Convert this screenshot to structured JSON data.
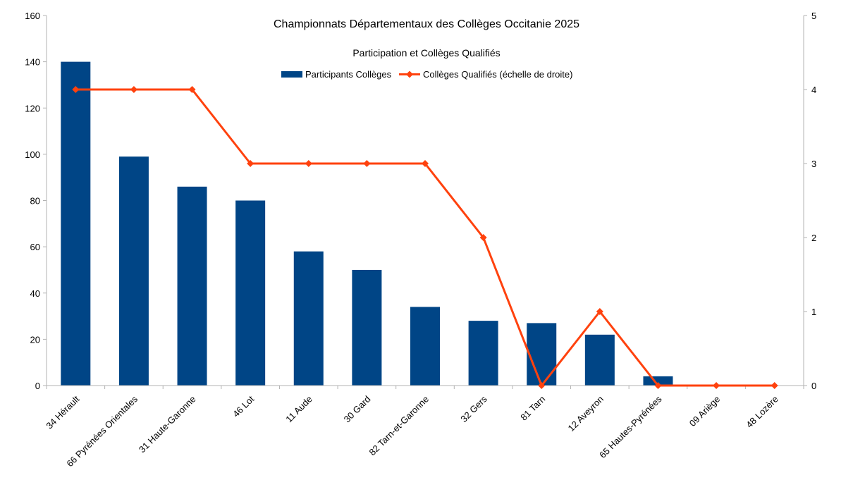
{
  "chart_data": {
    "type": "bar",
    "title": "Championnats Départementaux des Collèges Occitanie 2025",
    "subtitle": "Participation et Collèges Qualifiés",
    "categories": [
      "34 Hérault",
      "66 Pyrénées Orientales",
      "31 Haute-Garonne",
      "46 Lot",
      "11 Aude",
      "30 Gard",
      "82 Tarn-et-Garonne",
      "32 Gers",
      "81 Tarn",
      "12 Aveyron",
      "65 Hautes-Pyrénées",
      "09 Ariège",
      "48 Lozère"
    ],
    "series": [
      {
        "name": "Participants Collèges",
        "type": "bar",
        "axis": "left",
        "color": "#004586",
        "values": [
          140,
          99,
          86,
          80,
          58,
          50,
          34,
          28,
          27,
          22,
          4,
          0,
          0
        ]
      },
      {
        "name": "Collèges Qualifiés (échelle de droite)",
        "type": "line",
        "axis": "right",
        "color": "#ff420e",
        "values": [
          4,
          4,
          4,
          3,
          3,
          3,
          3,
          2,
          0,
          1,
          0,
          0,
          0
        ]
      }
    ],
    "ylim_left": [
      0,
      160
    ],
    "yticks_left": [
      "0",
      "20",
      "40",
      "60",
      "80",
      "100",
      "120",
      "140",
      "160"
    ],
    "ylim_right": [
      0,
      5
    ],
    "yticks_right": [
      "0",
      "1",
      "2",
      "3",
      "4",
      "5"
    ],
    "grid": false,
    "legend_position": "top-center"
  }
}
